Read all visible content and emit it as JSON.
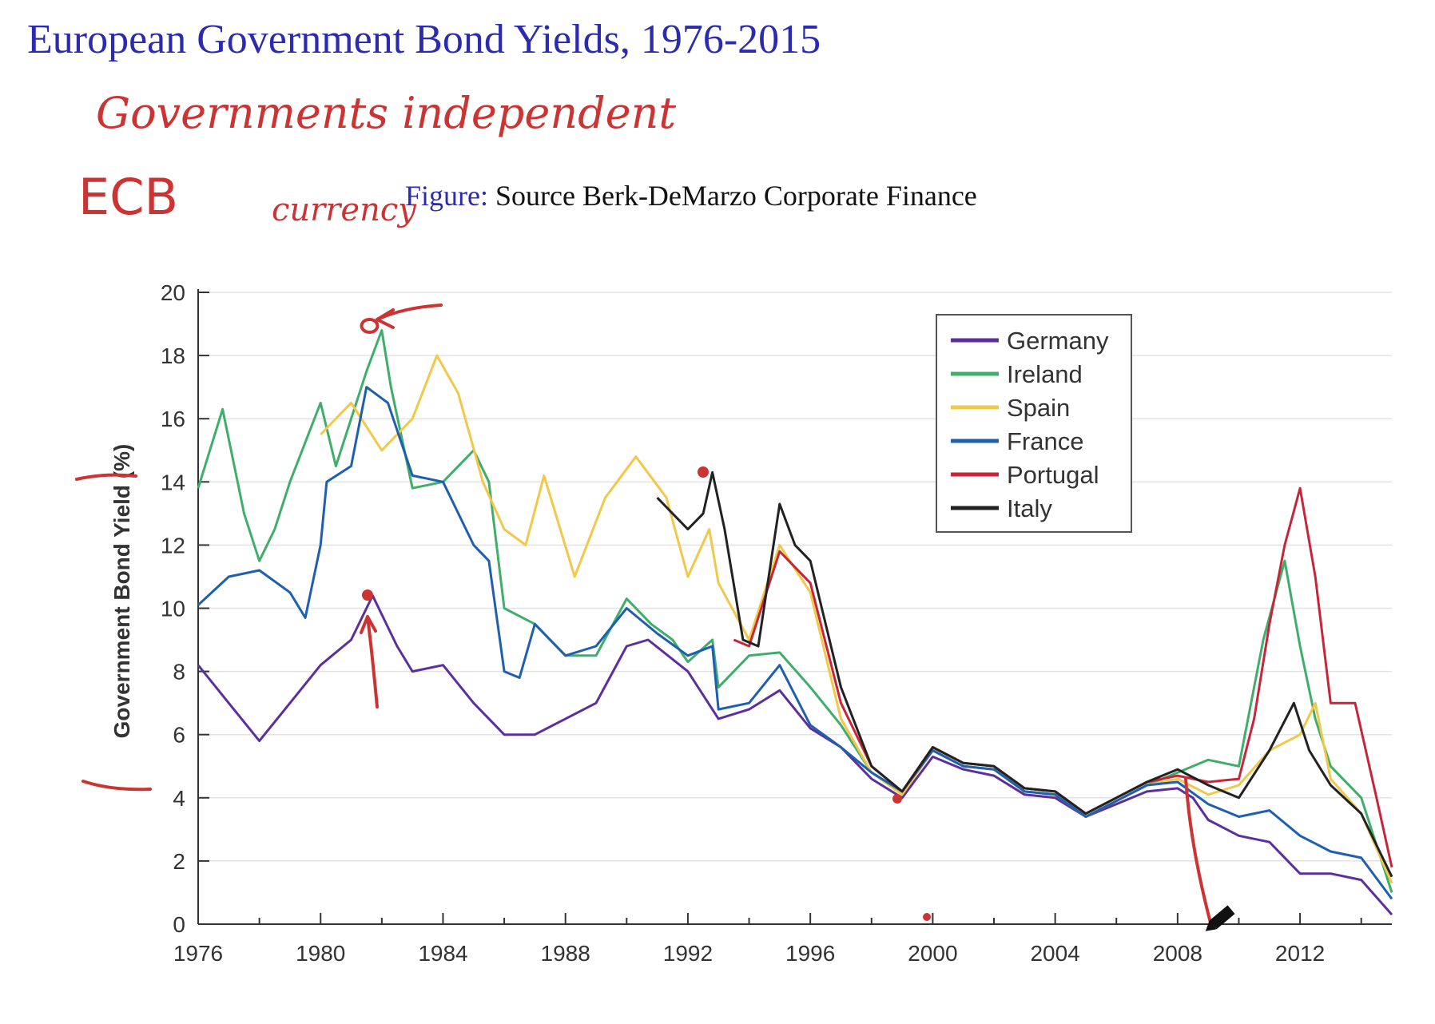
{
  "slide": {
    "title": "European Government Bond Yields, 1976-2015",
    "caption_label": "Figure:",
    "caption_text": "Source Berk-DeMarzo Corporate Finance"
  },
  "colors": {
    "title": "#2b2bb0",
    "ink": "#cc3333",
    "Germany": "#5b2f9e",
    "Ireland": "#3fae6a",
    "Spain": "#f2c84b",
    "France": "#1f5fb0",
    "Portugal": "#c7263a",
    "Italy": "#222222"
  },
  "chart_data": {
    "type": "line",
    "title": "",
    "xlabel": "",
    "ylabel": "Government Bond Yield (%)",
    "xlim": [
      1976,
      2015
    ],
    "ylim": [
      0,
      20
    ],
    "x_ticks": [
      1976,
      1980,
      1984,
      1988,
      1992,
      1996,
      2000,
      2004,
      2008,
      2012
    ],
    "y_ticks": [
      0,
      2,
      4,
      6,
      8,
      10,
      12,
      14,
      16,
      18,
      20
    ],
    "grid": "horizontal",
    "legend_position": "top-right",
    "series": [
      {
        "name": "Germany",
        "x": [
          1976,
          1977,
          1978,
          1979,
          1980,
          1981,
          1981.7,
          1982.5,
          1983,
          1984,
          1985,
          1986,
          1987,
          1988,
          1989,
          1990,
          1990.7,
          1992,
          1993,
          1994,
          1995,
          1996,
          1997,
          1998,
          1999,
          2000,
          2001,
          2002,
          2003,
          2004,
          2005,
          2006,
          2007,
          2008,
          2008.5,
          2009,
          2010,
          2011,
          2012,
          2013,
          2014,
          2015
        ],
        "y": [
          8.2,
          7.0,
          5.8,
          7.0,
          8.2,
          9.0,
          10.4,
          8.8,
          8.0,
          8.2,
          7.0,
          6.0,
          6.0,
          6.5,
          7.0,
          8.8,
          9.0,
          8.0,
          6.5,
          6.8,
          7.4,
          6.2,
          5.6,
          4.6,
          4.0,
          5.3,
          4.9,
          4.7,
          4.1,
          4.0,
          3.4,
          3.8,
          4.2,
          4.3,
          4.0,
          3.3,
          2.8,
          2.6,
          1.6,
          1.6,
          1.4,
          0.3
        ]
      },
      {
        "name": "Ireland",
        "x": [
          1976,
          1976.8,
          1977.5,
          1978,
          1978.5,
          1979,
          1980,
          1980.5,
          1981,
          1981.5,
          1982,
          1982.3,
          1983,
          1984,
          1985,
          1985.5,
          1986,
          1987,
          1988,
          1989,
          1990,
          1990.8,
          1991.5,
          1992,
          1992.8,
          1993,
          1994,
          1995,
          1996,
          1997,
          1998,
          1999,
          2000,
          2001,
          2002,
          2003,
          2004,
          2005,
          2006,
          2007,
          2008,
          2009,
          2010,
          2010.8,
          2011.5,
          2012,
          2012.5,
          2013,
          2014,
          2015
        ],
        "y": [
          13.8,
          16.3,
          13.0,
          11.5,
          12.5,
          14.0,
          16.5,
          14.5,
          16.0,
          17.5,
          18.8,
          17.0,
          13.8,
          14.0,
          15.0,
          14.0,
          10.0,
          9.5,
          8.5,
          8.5,
          10.3,
          9.5,
          9.0,
          8.3,
          9.0,
          7.5,
          8.5,
          8.6,
          7.5,
          6.3,
          4.8,
          4.2,
          5.5,
          5.0,
          4.9,
          4.2,
          4.1,
          3.4,
          3.9,
          4.4,
          4.8,
          5.2,
          5.0,
          9.0,
          11.5,
          8.8,
          6.5,
          5.0,
          4.0,
          1.0
        ]
      },
      {
        "name": "Spain",
        "x": [
          1980,
          1981,
          1982,
          1983,
          1983.8,
          1984.5,
          1985.3,
          1986,
          1986.7,
          1987.3,
          1988.3,
          1989.3,
          1990.3,
          1991.3,
          1992,
          1992.7,
          1993,
          1994,
          1995,
          1996,
          1997,
          1998,
          1999,
          2000,
          2001,
          2002,
          2003,
          2004,
          2005,
          2006,
          2007,
          2008,
          2009,
          2010,
          2011,
          2012,
          2012.5,
          2013,
          2014,
          2015
        ],
        "y": [
          15.5,
          16.5,
          15.0,
          16.0,
          18.0,
          16.8,
          14.0,
          12.5,
          12.0,
          14.2,
          11.0,
          13.5,
          14.8,
          13.5,
          11.0,
          12.5,
          10.8,
          9.0,
          12.0,
          10.5,
          6.5,
          4.8,
          4.1,
          5.5,
          5.0,
          4.9,
          4.2,
          4.1,
          3.4,
          3.9,
          4.4,
          4.6,
          4.1,
          4.4,
          5.5,
          6.0,
          7.0,
          4.6,
          3.5,
          1.3
        ]
      },
      {
        "name": "France",
        "x": [
          1976,
          1977,
          1978,
          1979,
          1979.5,
          1980,
          1980.2,
          1981,
          1981.5,
          1982.2,
          1983,
          1984,
          1985,
          1985.5,
          1986,
          1986.5,
          1987,
          1988,
          1989,
          1990,
          1991,
          1992,
          1992.8,
          1993,
          1994,
          1995,
          1996,
          1997,
          1998,
          1999,
          2000,
          2001,
          2002,
          2003,
          2004,
          2005,
          2006,
          2007,
          2008,
          2009,
          2010,
          2011,
          2012,
          2013,
          2014,
          2015
        ],
        "y": [
          10.1,
          11.0,
          11.2,
          10.5,
          9.7,
          12.0,
          14.0,
          14.5,
          17.0,
          16.5,
          14.2,
          14.0,
          12.0,
          11.5,
          8.0,
          7.8,
          9.5,
          8.5,
          8.8,
          10.0,
          9.2,
          8.5,
          8.8,
          6.8,
          7.0,
          8.2,
          6.3,
          5.6,
          4.8,
          4.2,
          5.5,
          5.0,
          4.9,
          4.2,
          4.1,
          3.4,
          3.9,
          4.4,
          4.5,
          3.8,
          3.4,
          3.6,
          2.8,
          2.3,
          2.1,
          0.8
        ]
      },
      {
        "name": "Portugal",
        "x": [
          1993.5,
          1994,
          1995,
          1996,
          1997,
          1998,
          1999,
          2000,
          2001,
          2002,
          2003,
          2004,
          2005,
          2006,
          2007,
          2008,
          2009,
          2010,
          2010.5,
          2011,
          2011.5,
          2012,
          2012.5,
          2013,
          2013.8,
          2014.5,
          2015
        ],
        "y": [
          9.0,
          8.8,
          11.8,
          10.8,
          7.0,
          5.0,
          4.2,
          5.6,
          5.1,
          5.0,
          4.3,
          4.2,
          3.5,
          4.0,
          4.5,
          4.7,
          4.5,
          4.6,
          6.5,
          9.5,
          12.0,
          13.8,
          11.0,
          7.0,
          7.0,
          4.0,
          1.8
        ]
      },
      {
        "name": "Italy",
        "x": [
          1991,
          1991.5,
          1992,
          1992.5,
          1992.8,
          1993.2,
          1993.8,
          1994.3,
          1995,
          1995.5,
          1996,
          1997,
          1998,
          1999,
          2000,
          2001,
          2002,
          2003,
          2004,
          2005,
          2006,
          2007,
          2008,
          2009,
          2010,
          2011,
          2011.8,
          2012.3,
          2013,
          2014,
          2015
        ],
        "y": [
          13.5,
          13.0,
          12.5,
          13.0,
          14.3,
          12.5,
          9.0,
          8.8,
          13.3,
          12.0,
          11.5,
          7.5,
          5.0,
          4.2,
          5.6,
          5.1,
          5.0,
          4.3,
          4.2,
          3.5,
          4.0,
          4.5,
          4.9,
          4.4,
          4.0,
          5.5,
          7.0,
          5.5,
          4.4,
          3.5,
          1.5
        ]
      }
    ]
  },
  "annotations": {
    "line1": "Governments independent",
    "line2_a": "ECB",
    "line2_b": "currency"
  }
}
